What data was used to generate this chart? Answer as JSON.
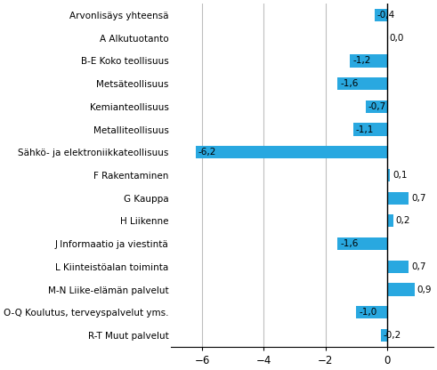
{
  "categories": [
    "R-T Muut palvelut",
    "O-Q Koulutus, terveyspalvelut yms.",
    "M-N Liike-elämän palvelut",
    "L Kiinteistöalan toiminta",
    "J Informaatio ja viestintä",
    "H Liikenne",
    "G Kauppa",
    "F Rakentaminen",
    "Sähkö- ja elektroniikkateollisuus",
    "Metalliteollisuus",
    "Kemianteollisuus",
    "Metsäteollisuus",
    "B-E Koko teollisuus",
    "A Alkutuotanto",
    "Arvonlisäys yhteensä"
  ],
  "values": [
    -0.2,
    -1.0,
    0.9,
    0.7,
    -1.6,
    0.2,
    0.7,
    0.1,
    -6.2,
    -1.1,
    -0.7,
    -1.6,
    -1.2,
    0.0,
    -0.4
  ],
  "bar_color": "#29a8e0",
  "xlim": [
    -7.0,
    1.5
  ],
  "xticks": [
    -6,
    -4,
    -2,
    0
  ],
  "background_color": "#ffffff",
  "grid_color": "#bebebe",
  "spine_color": "#000000",
  "label_fontsize": 7.5,
  "tick_fontsize": 8.5,
  "value_fontsize": 7.5,
  "bar_height": 0.55
}
